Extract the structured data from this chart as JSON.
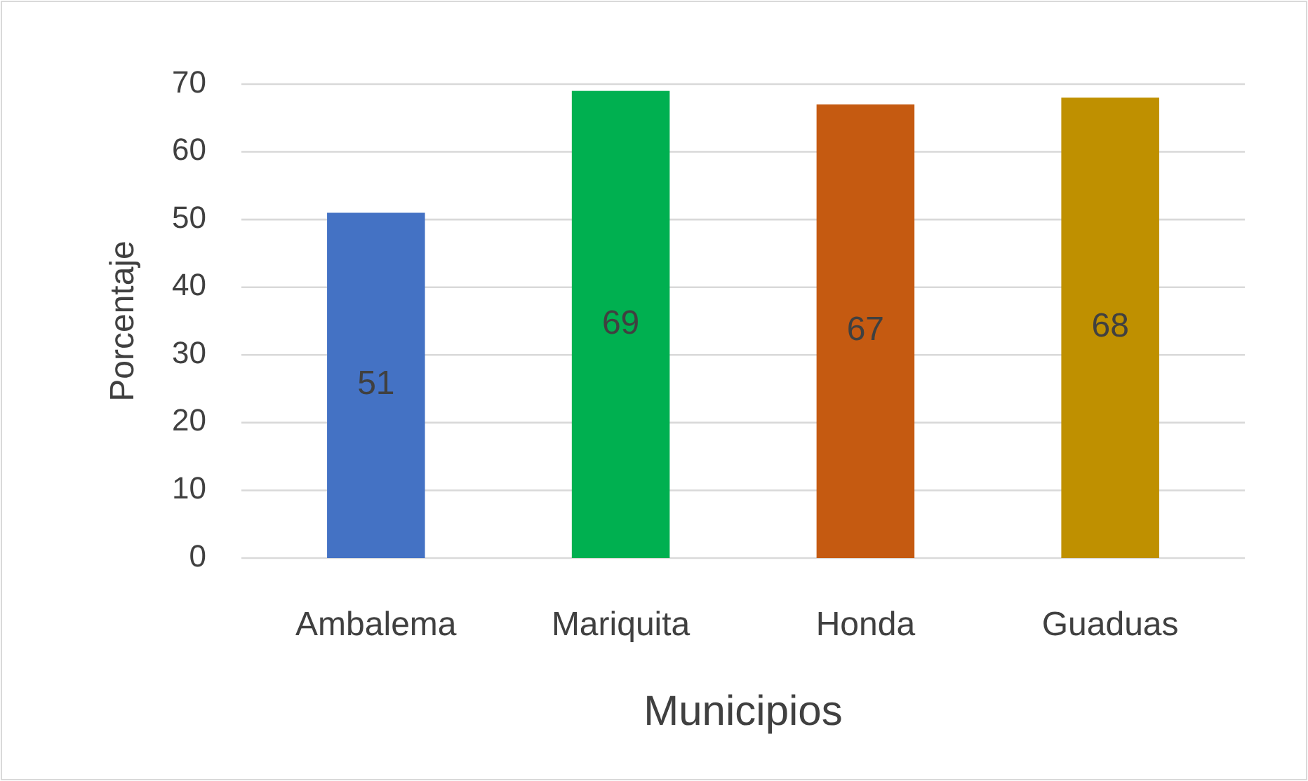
{
  "chart_data": {
    "type": "bar",
    "xlabel": "Municipios",
    "ylabel": "Porcentaje",
    "categories": [
      "Ambalema",
      "Mariquita",
      "Honda",
      "Guaduas"
    ],
    "values": [
      51,
      69,
      67,
      68
    ],
    "colors": [
      "#4472c4",
      "#00b050",
      "#c55a11",
      "#bf9000"
    ],
    "ylim": [
      0,
      70
    ],
    "yticks": [
      0,
      10,
      20,
      30,
      40,
      50,
      60,
      70
    ],
    "grid": true,
    "data_labels": true
  }
}
